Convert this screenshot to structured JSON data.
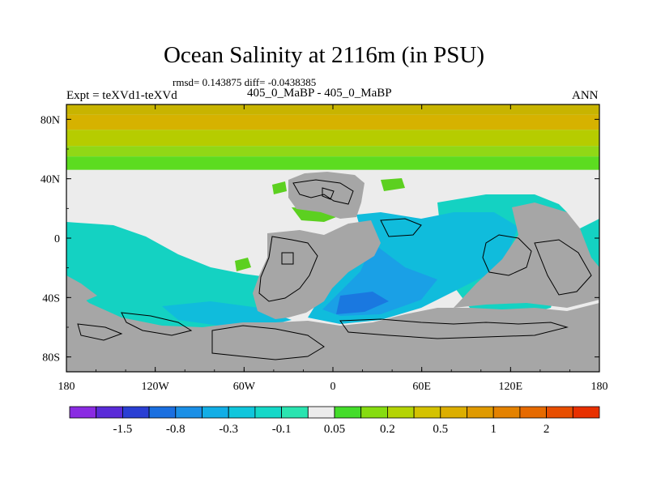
{
  "chart_data": {
    "type": "contour-map",
    "title": "Ocean Salinity at 2116m (in PSU)",
    "stats_line": "rmsd= 0.143875 diff= -0.0438385",
    "left_label": "Expt = teXVd1-teXVd",
    "center_label": "405_0_MaBP - 405_0_MaBP",
    "right_label": "ANN",
    "lon_range": [
      -180,
      180
    ],
    "lat_range": [
      -90,
      90
    ],
    "x_ticks": [
      "180",
      "120W",
      "60W",
      "0",
      "60E",
      "120E",
      "180"
    ],
    "y_ticks": [
      "80N",
      "40N",
      "0",
      "40S",
      "80S"
    ],
    "colorbar": {
      "colors": [
        "#8a2be2",
        "#5a2bd8",
        "#2a3fd4",
        "#1a6fe0",
        "#1a8fe6",
        "#12aee6",
        "#10c6dc",
        "#14d8c8",
        "#2ae4b0",
        "#ececec",
        "#44dc2a",
        "#86dc10",
        "#b4d404",
        "#d4c200",
        "#dcae00",
        "#e09a00",
        "#e48200",
        "#e66a00",
        "#e84e00",
        "#e83000"
      ],
      "labels": [
        "-1.5",
        "-0.8",
        "-0.3",
        "-0.1",
        "0.05",
        "0.2",
        "0.5",
        "1",
        "2"
      ],
      "label_after_index": [
        1,
        3,
        5,
        7,
        9,
        11,
        13,
        15,
        17
      ]
    },
    "fields": {
      "land_color": "#a6a6a6",
      "neutral_color": "#ececec",
      "lat_bands": [
        {
          "from_lat": 90,
          "to_lat": 83,
          "color": "#c8b400"
        },
        {
          "from_lat": 83,
          "to_lat": 73,
          "color": "#d6b200"
        },
        {
          "from_lat": 73,
          "to_lat": 62,
          "color": "#b6cc00"
        },
        {
          "from_lat": 62,
          "to_lat": 55,
          "color": "#90d816"
        },
        {
          "from_lat": 55,
          "to_lat": 46,
          "color": "#5cdc20"
        }
      ]
    }
  }
}
